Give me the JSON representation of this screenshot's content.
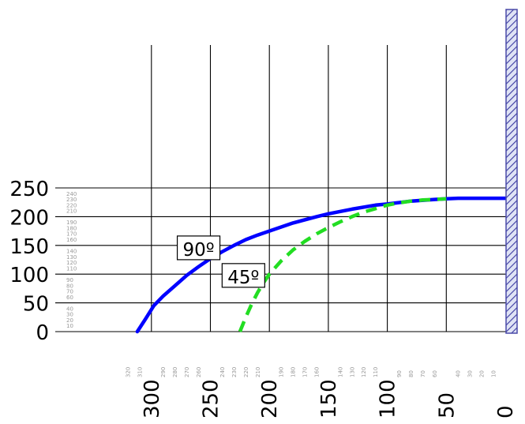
{
  "chart_data": {
    "type": "line",
    "title": "",
    "xlabel": "",
    "ylabel": "",
    "xlim": [
      320,
      0
    ],
    "ylim": [
      0,
      250
    ],
    "grid": true,
    "x_ticks": [
      300,
      250,
      200,
      150,
      100,
      50,
      0
    ],
    "y_ticks": [
      250,
      200,
      150,
      100,
      50,
      0
    ],
    "x_minor_ticks": [
      320,
      310,
      290,
      280,
      270,
      260,
      240,
      230,
      220,
      210,
      190,
      180,
      170,
      160,
      140,
      130,
      120,
      110,
      90,
      80,
      70,
      60,
      40,
      30,
      20,
      10
    ],
    "y_minor_ticks": [
      240,
      230,
      220,
      210,
      190,
      180,
      170,
      160,
      140,
      130,
      120,
      110,
      90,
      80,
      70,
      60,
      40,
      30,
      20,
      10
    ],
    "series": [
      {
        "name": "90º",
        "color": "#0000ff",
        "style": "solid",
        "x": [
          312,
          305,
          298,
          290,
          280,
          270,
          260,
          250,
          240,
          230,
          220,
          210,
          200,
          180,
          160,
          150,
          130,
          110,
          100,
          80,
          60,
          50,
          40,
          20,
          0
        ],
        "y": [
          0,
          22,
          45,
          62,
          80,
          98,
          113,
          127,
          139,
          150,
          160,
          168,
          175,
          189,
          200,
          205,
          213,
          220,
          222,
          227,
          230,
          231,
          232,
          232,
          232
        ]
      },
      {
        "name": "45º",
        "color": "#22dd22",
        "style": "dashed",
        "x": [
          225,
          220,
          215,
          210,
          205,
          200,
          190,
          180,
          170,
          160,
          150,
          140,
          130,
          120,
          110,
          100,
          90,
          80,
          70,
          60,
          50
        ],
        "y": [
          0,
          25,
          48,
          68,
          85,
          100,
          123,
          142,
          157,
          170,
          181,
          191,
          200,
          208,
          214,
          220,
          224,
          227,
          229,
          230,
          231
        ]
      }
    ],
    "annotations": [
      {
        "text": "90º",
        "x": 260,
        "y": 143
      },
      {
        "text": "45º",
        "x": 222,
        "y": 95
      }
    ],
    "wall": {
      "x": 0,
      "fill": "#4a4aa8",
      "hatch": true
    }
  }
}
